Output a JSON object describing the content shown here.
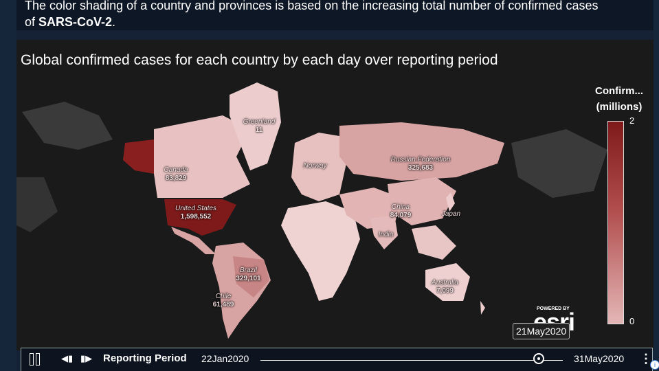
{
  "caption": {
    "line1": "The color shading of a country and provinces is based on the increasing total number of confirmed cases",
    "line2_prefix": "of ",
    "line2_bold": "SARS-CoV-2",
    "line2_suffix": "."
  },
  "map": {
    "title": "Global confirmed cases for each country by each day over reporting period",
    "labels": [
      {
        "name": "Greenland",
        "value": "11"
      },
      {
        "name": "Canada",
        "value": "83,829"
      },
      {
        "name": "United States",
        "value": "1,598,552"
      },
      {
        "name": "Norway",
        "value": ""
      },
      {
        "name": "Russian Federation",
        "value": "325,683"
      },
      {
        "name": "China",
        "value": "84,079"
      },
      {
        "name": "Japan",
        "value": ""
      },
      {
        "name": "India",
        "value": ""
      },
      {
        "name": "Brazil",
        "value": "329,101"
      },
      {
        "name": "Chile",
        "value": "61,489"
      },
      {
        "name": "Australia",
        "value": "7,099"
      }
    ],
    "colors": {
      "high": "#7f1a1a",
      "mid": "#c07a7a",
      "low": "#e4b6b6",
      "no_data": "#3a3a3a",
      "ocean": "#1a1a1a"
    }
  },
  "legend": {
    "title_line1": "Confirm...",
    "title_line2": "(millions)",
    "max": "2",
    "min": "0"
  },
  "branding": {
    "powered_by": "POWERED BY",
    "logo": "esri"
  },
  "current_date": "21May2020",
  "time_slider": {
    "pause_icon": "pause-icon",
    "label": "Reporting Period",
    "start": "22Jan2020",
    "end": "31May2020",
    "progress": 0.92,
    "prev_glyph": "◀▮",
    "next_glyph": "▮▶",
    "menu_glyph": "⋮",
    "info_glyph": "i"
  }
}
